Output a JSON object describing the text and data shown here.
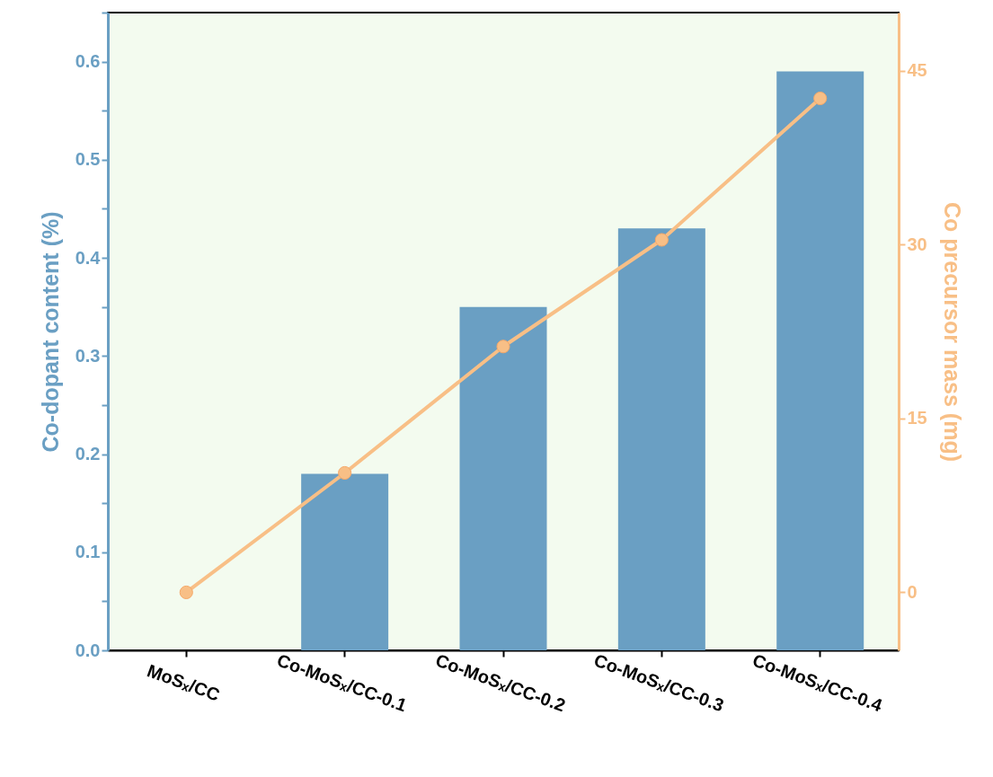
{
  "chart_data": {
    "type": "bar",
    "categories": [
      "MoSₓ/CC",
      "Co-MoSₓ/CC-0.1",
      "Co-MoSₓ/CC-0.2",
      "Co-MoSₓ/CC-0.3",
      "Co-MoSₓ/CC-0.4"
    ],
    "series": [
      {
        "color": "#6a9fc3",
        "values": [
          0,
          0.18,
          0.35,
          0.43,
          0.59
        ]
      },
      {
        "type": "line",
        "axis": "y2",
        "color": "#f8bf86",
        "values": [
          0,
          10.3,
          21.2,
          30.4,
          42.6
        ]
      }
    ],
    "ylabel": "Co-dopant content (%)",
    "y2label": "Co precursor mass (mg)",
    "ylim": [
      0,
      0.65
    ],
    "yticks": [
      {
        "value": 0,
        "label": "0.0"
      },
      {
        "value": 0.05,
        "label": null
      },
      0.1,
      {
        "value": 0.15,
        "label": null
      },
      0.2,
      {
        "value": 0.25,
        "label": null
      },
      0.3,
      {
        "value": 0.35,
        "label": null
      },
      0.4,
      {
        "value": 0.45,
        "label": null
      },
      0.5,
      {
        "value": 0.55,
        "label": null
      },
      0.6,
      {
        "value": 0.65,
        "label": null
      }
    ],
    "y2lim": [
      -5,
      50
    ],
    "y2ticks": [
      0,
      15,
      30,
      45
    ],
    "marker": "circle",
    "grid": false
  }
}
